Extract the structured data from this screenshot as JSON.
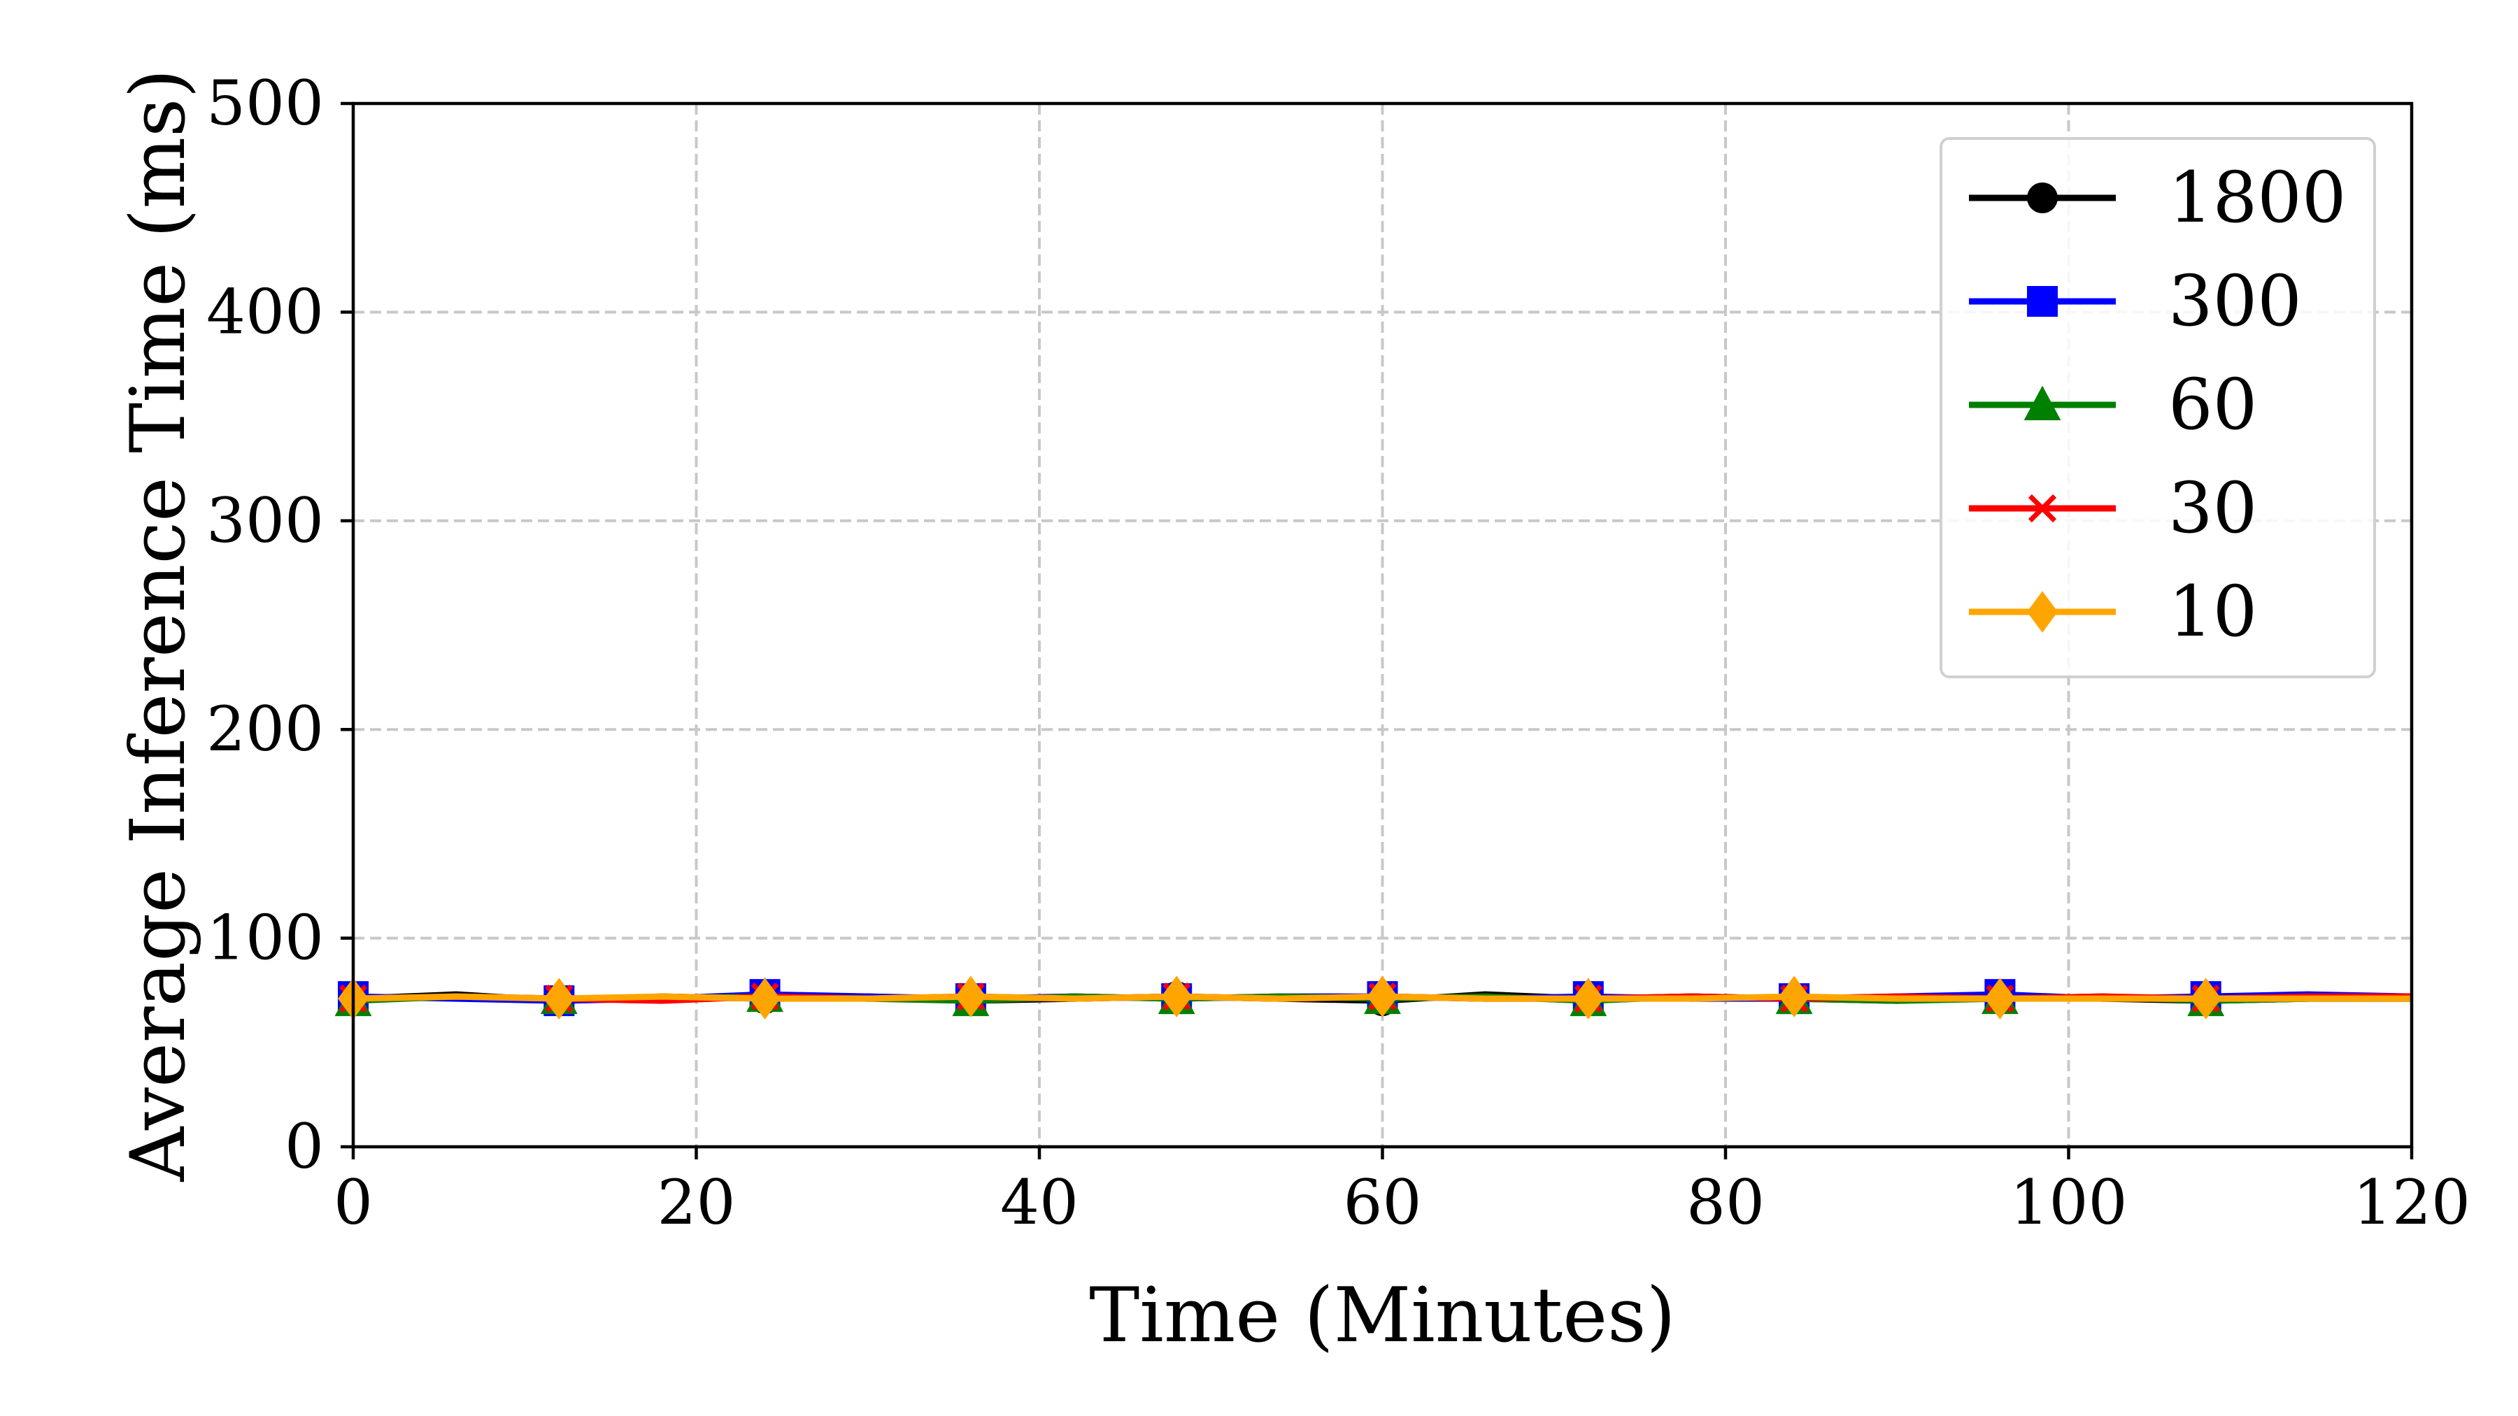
{
  "chart_data": {
    "type": "line",
    "title": "",
    "xlabel": "Time (Minutes)",
    "ylabel": "Average Inference Time (ms)",
    "xlim": [
      0,
      120
    ],
    "ylim": [
      0,
      500
    ],
    "xticks": [
      0,
      20,
      40,
      60,
      80,
      100,
      120
    ],
    "yticks": [
      0,
      100,
      200,
      300,
      400,
      500
    ],
    "grid": true,
    "legend_position": "top-right",
    "series": [
      {
        "name": "1800",
        "color": "#000000",
        "marker": "circle",
        "x": [
          0,
          6,
          12,
          18,
          24,
          30,
          36,
          42,
          48,
          54,
          60,
          66,
          72,
          78,
          84,
          90,
          96,
          102,
          108,
          114,
          120
        ],
        "y": [
          71,
          73,
          70,
          72,
          71,
          72,
          70,
          71,
          72,
          71,
          70,
          73,
          71,
          72,
          71,
          70,
          72,
          71,
          70,
          71,
          71
        ],
        "marker_x": [
          0,
          12,
          24,
          36,
          48,
          60,
          72,
          84,
          96,
          108
        ]
      },
      {
        "name": "300",
        "color": "#0000ff",
        "marker": "square",
        "x": [
          0,
          6,
          12,
          18,
          24,
          30,
          36,
          42,
          48,
          54,
          60,
          66,
          72,
          78,
          84,
          90,
          96,
          102,
          108,
          114,
          120
        ],
        "y": [
          72,
          71,
          70,
          71,
          73,
          72,
          71,
          72,
          71,
          72,
          72,
          71,
          72,
          71,
          71,
          72,
          73,
          71,
          72,
          73,
          72
        ],
        "marker_x": [
          0,
          12,
          24,
          36,
          48,
          60,
          72,
          84,
          96,
          108
        ]
      },
      {
        "name": "60",
        "color": "#008000",
        "marker": "triangle",
        "x": [
          0,
          6,
          12,
          18,
          24,
          30,
          36,
          42,
          48,
          54,
          60,
          66,
          72,
          78,
          84,
          90,
          96,
          102,
          108,
          114,
          120
        ],
        "y": [
          70,
          72,
          71,
          71,
          72,
          71,
          70,
          72,
          71,
          72,
          71,
          72,
          70,
          72,
          71,
          70,
          71,
          72,
          70,
          71,
          71
        ],
        "marker_x": [
          0,
          12,
          24,
          36,
          48,
          60,
          72,
          84,
          96,
          108
        ]
      },
      {
        "name": "30",
        "color": "#ff0000",
        "marker": "x",
        "x": [
          0,
          6,
          12,
          18,
          24,
          30,
          36,
          42,
          48,
          54,
          60,
          66,
          72,
          78,
          84,
          90,
          96,
          102,
          108,
          114,
          120
        ],
        "y": [
          71,
          72,
          71,
          70,
          72,
          71,
          72,
          71,
          72,
          71,
          72,
          71,
          71,
          72,
          71,
          72,
          71,
          72,
          71,
          72,
          72
        ],
        "marker_x": [
          0,
          12,
          24,
          36,
          48,
          60,
          72,
          84,
          96,
          108
        ]
      },
      {
        "name": "10",
        "color": "#ffa500",
        "marker": "diamond",
        "x": [
          0,
          6,
          12,
          18,
          24,
          30,
          36,
          42,
          48,
          54,
          60,
          66,
          72,
          78,
          84,
          90,
          96,
          102,
          108,
          114,
          120
        ],
        "y": [
          71,
          72,
          71,
          72,
          71,
          71,
          72,
          71,
          72,
          71,
          72,
          71,
          71,
          71,
          72,
          71,
          71,
          71,
          71,
          71,
          71
        ],
        "marker_x": [
          0,
          12,
          24,
          36,
          48,
          60,
          72,
          84,
          96,
          108
        ]
      }
    ]
  }
}
